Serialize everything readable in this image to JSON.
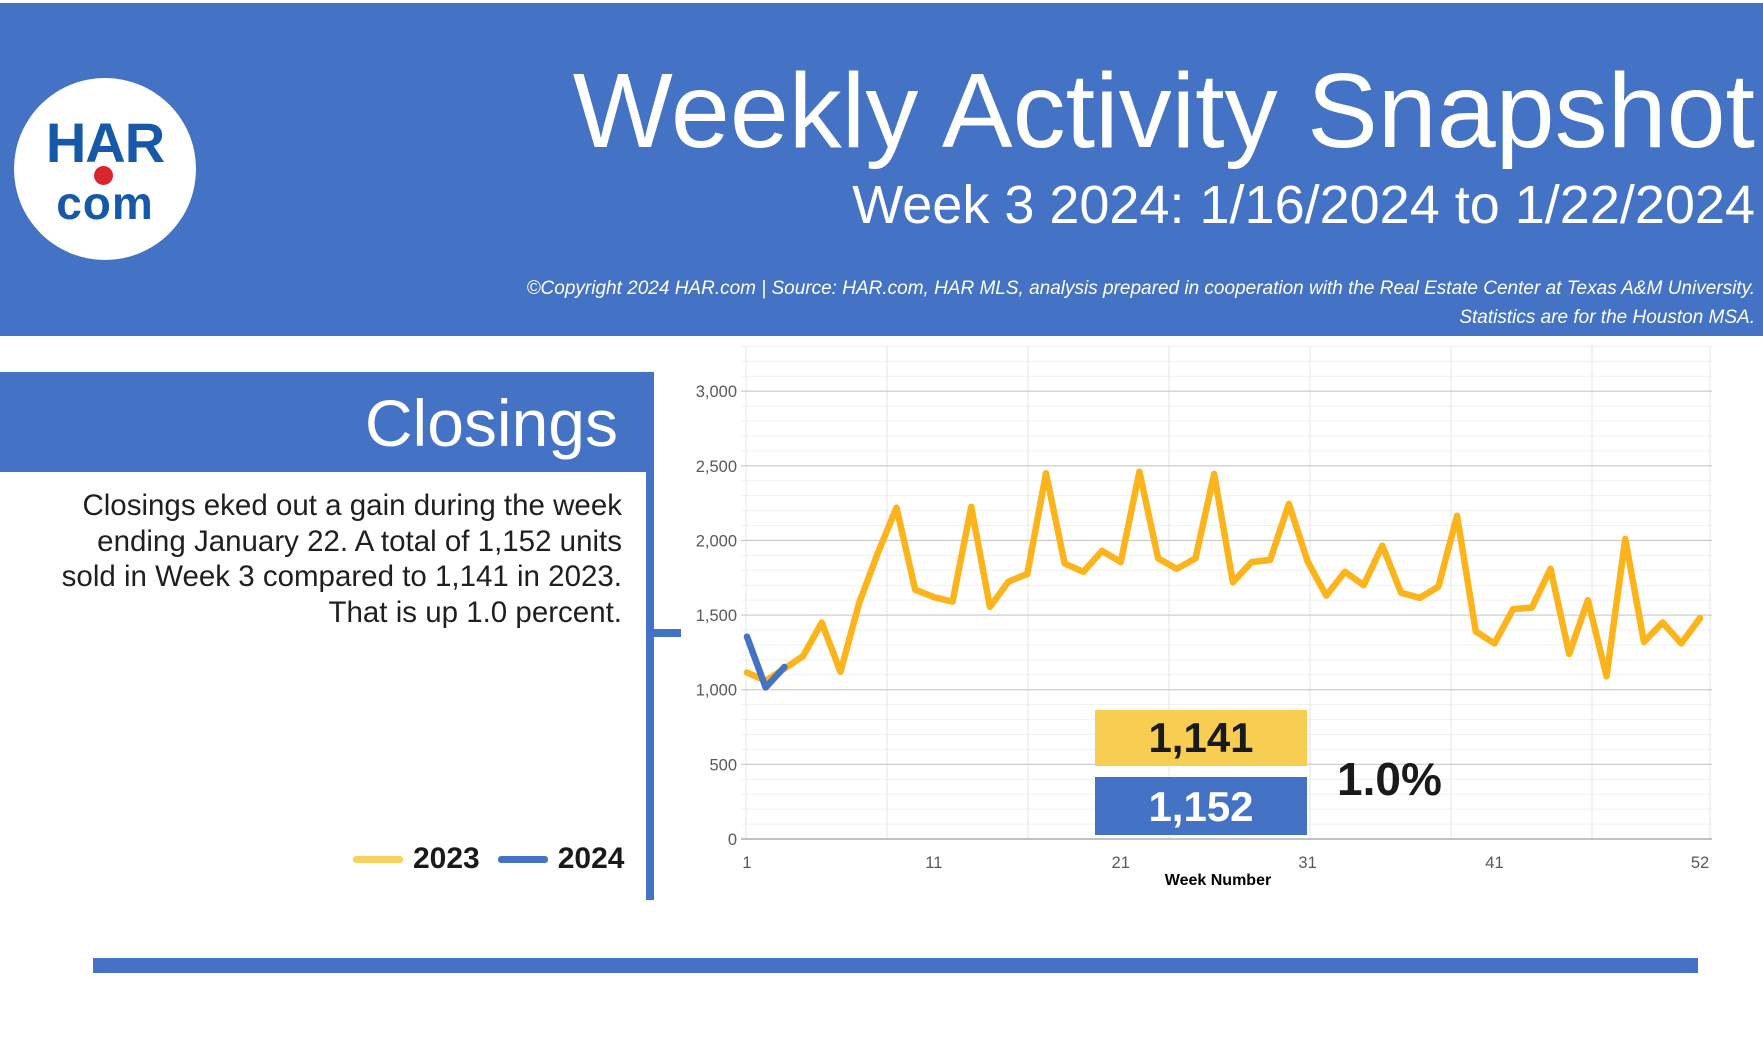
{
  "header": {
    "logo": {
      "line1": "HAR",
      "line2": "com"
    },
    "title": "Weekly Activity Snapshot",
    "subtitle": "Week 3 2024: 1/16/2024 to 1/22/2024",
    "copyright_line1": "©Copyright 2024 HAR.com  |  Source: HAR.com, HAR MLS, analysis prepared in cooperation with the Real Estate Center at Texas A&M University.",
    "copyright_line2": "Statistics are for the Houston MSA.",
    "background_color": "#4472C4"
  },
  "section": {
    "title": "Closings",
    "paragraph": "Closings eked out a gain during the week\nending January 22. A total of 1,152 units\nsold in Week 3 compared to 1,141 in 2023.\nThat is up 1.0 percent.",
    "legend": [
      {
        "label": "2023",
        "color": "#F9D15F"
      },
      {
        "label": "2024",
        "color": "#4472C4"
      }
    ]
  },
  "chart_data": {
    "type": "line",
    "title": "",
    "xlabel": "Week Number",
    "ylabel": "",
    "xlim": [
      1,
      52
    ],
    "ylim": [
      0,
      3000
    ],
    "grid": "major+minor",
    "legend_position": "outside-left",
    "x_ticks": [
      "1",
      "11",
      "21",
      "31",
      "41",
      "52"
    ],
    "x_tick_values": [
      1,
      11,
      21,
      31,
      41,
      52
    ],
    "y_ticks": [
      "0",
      "500",
      "1,000",
      "1,500",
      "2,000",
      "2,500",
      "3,000"
    ],
    "y_tick_values": [
      0,
      500,
      1000,
      1500,
      2000,
      2500,
      3000
    ],
    "y_minor_step": 100,
    "series": [
      {
        "name": "2023",
        "color": "#FBB41B",
        "values": [
          1115,
          1060,
          1141,
          1225,
          1450,
          1120,
          1580,
          1915,
          2220,
          1670,
          1620,
          1590,
          2225,
          1555,
          1725,
          1775,
          2450,
          1845,
          1790,
          1930,
          1855,
          2460,
          1880,
          1810,
          1880,
          2445,
          1720,
          1855,
          1870,
          2245,
          1860,
          1630,
          1790,
          1700,
          1965,
          1650,
          1615,
          1690,
          2165,
          1390,
          1310,
          1540,
          1550,
          1810,
          1240,
          1600,
          1090,
          2010,
          1320,
          1450,
          1310,
          1480
        ]
      },
      {
        "name": "2024",
        "color": "#4472C4",
        "values": [
          1355,
          1015,
          1152
        ]
      }
    ],
    "annotations": {
      "label_2023": "1,141",
      "label_2024": "1,152",
      "pct_change": "1.0%",
      "box_color_2023": "#F8CE52",
      "box_color_2024": "#4472C4"
    }
  }
}
